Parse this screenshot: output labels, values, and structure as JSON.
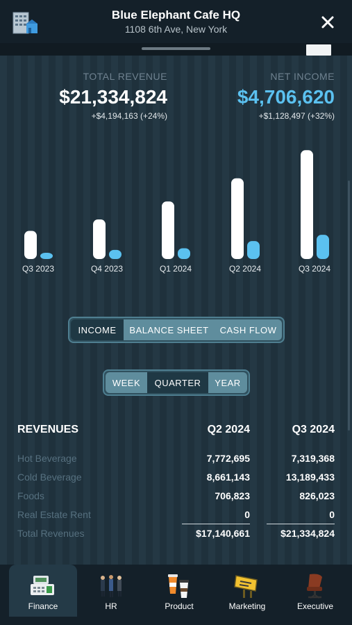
{
  "header": {
    "title": "Blue Elephant Cafe HQ",
    "address": "1108 6th Ave, New York",
    "icons": {
      "building": "building-icon",
      "close": "close-icon"
    }
  },
  "kpis": {
    "revenue": {
      "label": "TOTAL REVENUE",
      "value": "$21,334,824",
      "delta": "+$4,194,163 (+24%)"
    },
    "income": {
      "label": "NET INCOME",
      "value": "$4,706,620",
      "delta": "+$1,128,497 (+32%)"
    }
  },
  "chart_data": {
    "type": "bar",
    "categories": [
      "Q3 2023",
      "Q4 2023",
      "Q1 2024",
      "Q2 2024",
      "Q3 2024"
    ],
    "series": [
      {
        "values": [
          8.6,
          12.1,
          17.6,
          24.7,
          33.3
        ],
        "color": "#ffffff"
      },
      {
        "values": [
          1.9,
          2.8,
          3.3,
          5.5,
          7.4
        ],
        "color": "#5bc1f0"
      }
    ],
    "ylim": [
      0,
      34
    ]
  },
  "statements": {
    "options": [
      "INCOME",
      "BALANCE SHEET",
      "CASH FLOW"
    ],
    "selected": "INCOME"
  },
  "periods": {
    "options": [
      "WEEK",
      "QUARTER",
      "YEAR"
    ],
    "selected": "QUARTER"
  },
  "table": {
    "title": "REVENUES",
    "columns": [
      "Q2 2024",
      "Q3 2024"
    ],
    "rows": [
      {
        "label": "Hot Beverage",
        "values": [
          "7,772,695",
          "7,319,368"
        ]
      },
      {
        "label": "Cold Beverage",
        "values": [
          "8,661,143",
          "13,189,433"
        ]
      },
      {
        "label": "Foods",
        "values": [
          "706,823",
          "826,023"
        ]
      },
      {
        "label": "Real Estate Rent",
        "values": [
          "0",
          "0"
        ]
      },
      {
        "label": "Total Revenues",
        "values": [
          "$17,140,661",
          "$21,334,824"
        ]
      }
    ]
  },
  "tabs": [
    {
      "label": "Finance",
      "icon": "cash-register-icon",
      "active": true
    },
    {
      "label": "HR",
      "icon": "people-icon",
      "active": false
    },
    {
      "label": "Product",
      "icon": "coffee-cups-icon",
      "active": false
    },
    {
      "label": "Marketing",
      "icon": "billboard-icon",
      "active": false
    },
    {
      "label": "Executive",
      "icon": "office-chair-icon",
      "active": false
    }
  ],
  "colors": {
    "accent": "#5bc1f0",
    "segment": "#5f8d9d",
    "header": "#142029"
  }
}
